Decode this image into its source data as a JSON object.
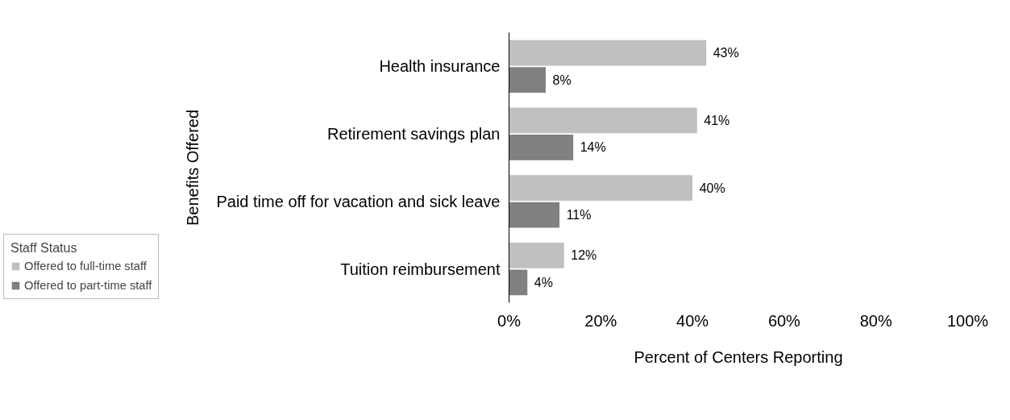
{
  "chart_data": {
    "type": "bar",
    "orientation": "horizontal",
    "categories": [
      "Health insurance",
      "Retirement savings plan",
      "Paid time off for vacation and sick leave",
      "Tuition reimbursement"
    ],
    "series": [
      {
        "name": "Offered to full-time staff",
        "color": "#c0c0c0",
        "values": [
          43,
          41,
          40,
          12
        ],
        "value_labels": [
          "43%",
          "41%",
          "40%",
          "12%"
        ]
      },
      {
        "name": "Offered to part-time staff",
        "color": "#808080",
        "values": [
          8,
          14,
          11,
          4
        ],
        "value_labels": [
          "8%",
          "14%",
          "11%",
          "4%"
        ]
      }
    ],
    "xlabel": "Percent of Centers Reporting",
    "ylabel": "Benefits Offered",
    "legend_title": "Staff Status",
    "legend": "bottom left",
    "xlim": [
      0,
      100
    ],
    "xticks": [
      {
        "value": 0,
        "label": "0%"
      },
      {
        "value": 20,
        "label": "20%"
      },
      {
        "value": 40,
        "label": "40%"
      },
      {
        "value": 60,
        "label": "60%"
      },
      {
        "value": 80,
        "label": "80%"
      },
      {
        "value": 100,
        "label": "100%"
      }
    ],
    "grid": false
  }
}
